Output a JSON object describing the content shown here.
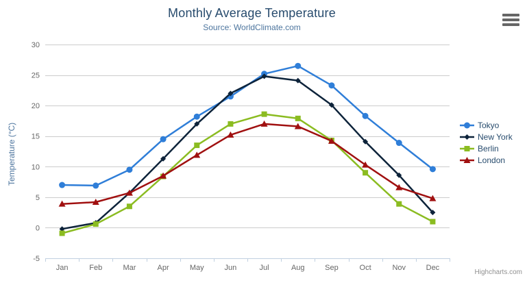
{
  "chart_data": {
    "type": "line",
    "title": "Monthly Average Temperature",
    "subtitle": "Source: WorldClimate.com",
    "ylabel": "Temperature (°C)",
    "xlabel": "",
    "categories": [
      "Jan",
      "Feb",
      "Mar",
      "Apr",
      "May",
      "Jun",
      "Jul",
      "Aug",
      "Sep",
      "Oct",
      "Nov",
      "Dec"
    ],
    "ylim": [
      -5,
      30
    ],
    "ytick_step": 5,
    "grid": true,
    "legend_position": "right",
    "series": [
      {
        "name": "Tokyo",
        "color": "#2f7ed8",
        "marker": "circle",
        "values": [
          7.0,
          6.9,
          9.5,
          14.5,
          18.2,
          21.5,
          25.2,
          26.5,
          23.3,
          18.3,
          13.9,
          9.6
        ]
      },
      {
        "name": "New York",
        "color": "#0d233a",
        "marker": "diamond",
        "values": [
          -0.2,
          0.8,
          5.7,
          11.3,
          17.0,
          22.0,
          24.8,
          24.1,
          20.1,
          14.1,
          8.6,
          2.5
        ]
      },
      {
        "name": "Berlin",
        "color": "#8bbc21",
        "marker": "square",
        "values": [
          -0.9,
          0.6,
          3.5,
          8.4,
          13.5,
          17.0,
          18.6,
          17.9,
          14.3,
          9.0,
          3.9,
          1.0
        ]
      },
      {
        "name": "London",
        "color": "#a01010",
        "marker": "triangle",
        "values": [
          3.9,
          4.2,
          5.7,
          8.5,
          11.9,
          15.2,
          17.0,
          16.6,
          14.2,
          10.3,
          6.6,
          4.8
        ]
      }
    ]
  },
  "credits": {
    "label": "Highcharts.com"
  },
  "colors": {
    "title": "#274b6d",
    "subtitle": "#4d759e",
    "axis_labels": "#666666",
    "gridline": "#cccccc",
    "axis_line": "#c0d0e0",
    "legend_text": "#274b6d",
    "menu_icon": "#666666",
    "credits": "#909090"
  }
}
